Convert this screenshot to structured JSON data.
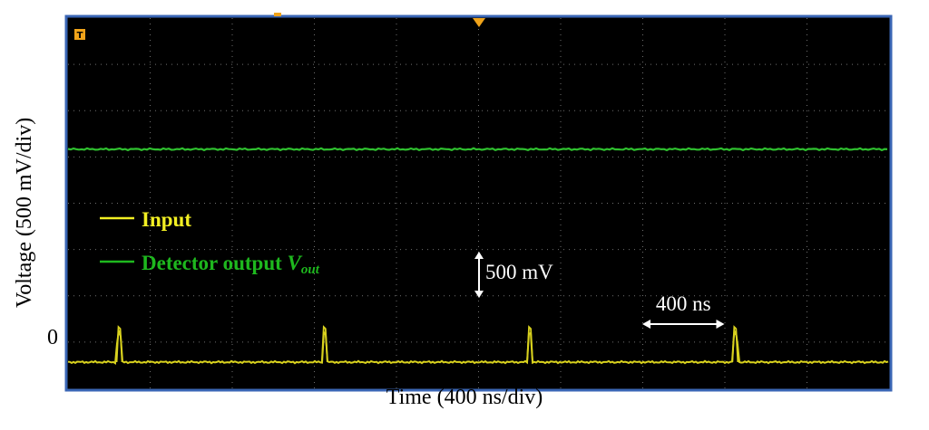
{
  "chart_data": {
    "type": "line",
    "xlabel": "Time (400 ns/div)",
    "ylabel": "Voltage  (500 mV/div)",
    "y_zero_label": "0",
    "x_unit_per_div_ns": 400,
    "y_unit_per_div_mV": 500,
    "x_divisions": 10,
    "y_divisions": 8,
    "grid": true,
    "background": "#000000",
    "frame_color": "#3a66b5",
    "legend": {
      "placement": "middle-left",
      "entries": [
        {
          "name": "Input",
          "color": "#f2ef23",
          "italic_suffix": ""
        },
        {
          "name": "Detector output ",
          "color": "#1eb81e",
          "italic_suffix": "V",
          "subscript": "out"
        }
      ]
    },
    "series": [
      {
        "name": "Input",
        "color": "#d9d21e",
        "baseline_mV": 0,
        "pulse_times_ns": [
          250,
          1250,
          2250,
          3250
        ],
        "pulse_height_mV": 380,
        "pulse_width_ns": 20
      },
      {
        "name": "Detector output Vout",
        "color": "#2fc02f",
        "level_mV": 2300
      }
    ],
    "annotations": [
      {
        "text": "500 mV",
        "kind": "vertical-arrow",
        "span_mV": 500
      },
      {
        "text": "400 ns",
        "kind": "horizontal-arrow",
        "span_ns": 400
      }
    ]
  }
}
